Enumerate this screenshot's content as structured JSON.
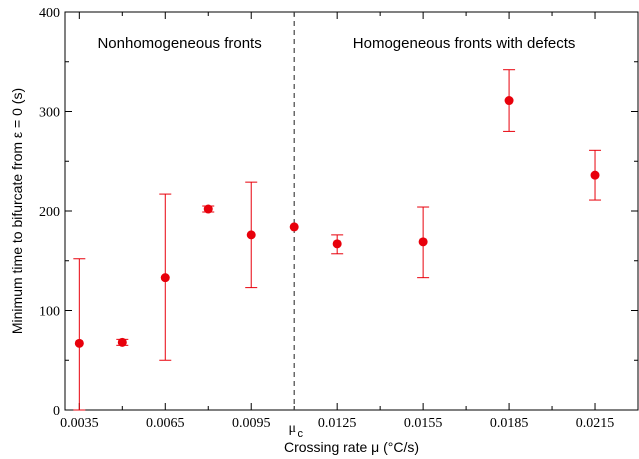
{
  "chart_data": {
    "type": "scatter",
    "title": "",
    "xlabel": "Crossing rate μ (°C/s)",
    "ylabel": "Minimum time to bifurcate from ε = 0 (s)",
    "xlim": [
      0.003,
      0.023
    ],
    "ylim": [
      0,
      400
    ],
    "x_ticks": [
      0.0035,
      0.0065,
      0.0095,
      0.0125,
      0.0155,
      0.0185,
      0.0215
    ],
    "x_tick_labels": [
      "0.0035",
      "0.0065",
      "0.0095",
      "0.0125",
      "0.0155",
      "0.0185",
      "0.0215"
    ],
    "y_ticks": [
      0,
      100,
      200,
      300,
      400
    ],
    "y_tick_labels": [
      "0",
      "100",
      "200",
      "300",
      "400"
    ],
    "grid": false,
    "color": "#e8000b",
    "series": [
      {
        "x": [
          0.0035,
          0.005,
          0.0065,
          0.008,
          0.0095,
          0.011,
          0.0125,
          0.0155,
          0.0185,
          0.0215
        ],
        "y": [
          67,
          68,
          133,
          202,
          176,
          184,
          167,
          169,
          311,
          236
        ],
        "err_low": [
          0,
          65,
          50,
          199,
          123,
          184,
          157,
          133,
          280,
          211
        ],
        "err_high": [
          152,
          71,
          217,
          205,
          229,
          184,
          176,
          204,
          342,
          261
        ]
      }
    ],
    "vline": {
      "x": 0.011,
      "label_main": "μ",
      "label_sub": "c",
      "style": "dashed"
    },
    "annotations": [
      {
        "text": "Nonhomogeneous fronts",
        "region": "left"
      },
      {
        "text": "Homogeneous fronts with defects",
        "region": "right"
      }
    ]
  }
}
